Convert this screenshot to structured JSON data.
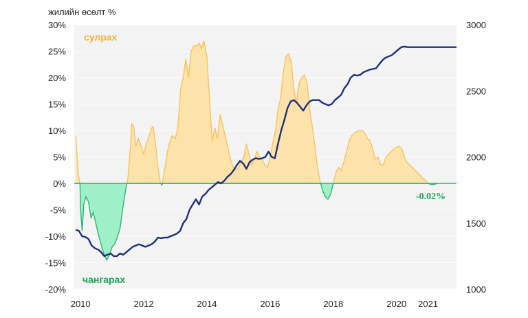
{
  "chart_data": {
    "type": "area",
    "ylabel": "жилийн өсөлт %",
    "y_left": {
      "min": -20,
      "max": 30,
      "step": 5,
      "format": "percent"
    },
    "y_right": {
      "min": 1000,
      "max": 3000,
      "step": 500
    },
    "x_ticks": [
      {
        "label": "2010",
        "x": 2010.0
      },
      {
        "label": "2012",
        "x": 2012.0
      },
      {
        "label": "2014",
        "x": 2014.0
      },
      {
        "label": "2016",
        "x": 2016.0
      },
      {
        "label": "2018",
        "x": 2018.0
      },
      {
        "label": "2020",
        "x": 2020.0
      },
      {
        "label": "2021",
        "x": 2021.0
      }
    ],
    "x_range": [
      2009.8,
      2021.9
    ],
    "annotations": {
      "up": "сулрах",
      "down": "чангарах",
      "end_value": "-0.02%"
    },
    "colors": {
      "up_fill": "#fde2aa",
      "up_line": "#f7c35c",
      "down_fill": "#9ff0c9",
      "down_line": "#2bb673",
      "level_line": "#1f2f7a",
      "up_text": "#f2b33d",
      "down_text": "#1aa35a",
      "grid": "#eeeeee",
      "plot_bg": "#f3f3f3"
    },
    "series": [
      {
        "role": "growth",
        "axis": "left",
        "points": [
          [
            2009.85,
            9.0
          ],
          [
            2009.92,
            2.0
          ],
          [
            2009.98,
            0.0
          ],
          [
            2010.0,
            -5.0
          ],
          [
            2010.05,
            -9.0
          ],
          [
            2010.1,
            -4.0
          ],
          [
            2010.17,
            -2.5
          ],
          [
            2010.25,
            -3.5
          ],
          [
            2010.33,
            -6.5
          ],
          [
            2010.4,
            -5.5
          ],
          [
            2010.5,
            -8.0
          ],
          [
            2010.58,
            -10.0
          ],
          [
            2010.67,
            -12.0
          ],
          [
            2010.75,
            -13.5
          ],
          [
            2010.83,
            -14.5
          ],
          [
            2010.92,
            -13.5
          ],
          [
            2011.0,
            -12.0
          ],
          [
            2011.08,
            -11.5
          ],
          [
            2011.17,
            -10.0
          ],
          [
            2011.25,
            -8.5
          ],
          [
            2011.33,
            -5.0
          ],
          [
            2011.42,
            -1.5
          ],
          [
            2011.5,
            1.0
          ],
          [
            2011.58,
            7.0
          ],
          [
            2011.62,
            11.3
          ],
          [
            2011.68,
            10.8
          ],
          [
            2011.75,
            7.0
          ],
          [
            2011.83,
            8.5
          ],
          [
            2011.92,
            7.0
          ],
          [
            2012.0,
            5.5
          ],
          [
            2012.08,
            7.5
          ],
          [
            2012.17,
            9.0
          ],
          [
            2012.25,
            10.5
          ],
          [
            2012.3,
            10.7
          ],
          [
            2012.38,
            7.0
          ],
          [
            2012.45,
            3.0
          ],
          [
            2012.53,
            0.0
          ],
          [
            2012.58,
            -0.3
          ],
          [
            2012.67,
            3.0
          ],
          [
            2012.75,
            6.0
          ],
          [
            2012.83,
            8.0
          ],
          [
            2012.9,
            9.0
          ],
          [
            2013.0,
            8.5
          ],
          [
            2013.08,
            10.5
          ],
          [
            2013.17,
            18.0
          ],
          [
            2013.25,
            20.0
          ],
          [
            2013.33,
            23.5
          ],
          [
            2013.42,
            20.0
          ],
          [
            2013.5,
            25.0
          ],
          [
            2013.58,
            26.0
          ],
          [
            2013.67,
            26.0
          ],
          [
            2013.75,
            26.5
          ],
          [
            2013.83,
            25.5
          ],
          [
            2013.9,
            27.0
          ],
          [
            2014.0,
            24.0
          ],
          [
            2014.08,
            16.0
          ],
          [
            2014.17,
            8.0
          ],
          [
            2014.25,
            10.5
          ],
          [
            2014.33,
            8.5
          ],
          [
            2014.42,
            13.0
          ],
          [
            2014.5,
            11.0
          ],
          [
            2014.58,
            9.0
          ],
          [
            2014.67,
            6.5
          ],
          [
            2014.75,
            4.5
          ],
          [
            2014.83,
            3.0
          ],
          [
            2014.92,
            2.5
          ],
          [
            2015.0,
            3.0
          ],
          [
            2015.08,
            4.0
          ],
          [
            2015.17,
            5.0
          ],
          [
            2015.25,
            7.5
          ],
          [
            2015.33,
            5.5
          ],
          [
            2015.42,
            3.5
          ],
          [
            2015.5,
            4.5
          ],
          [
            2015.58,
            6.0
          ],
          [
            2015.67,
            5.0
          ],
          [
            2015.75,
            4.5
          ],
          [
            2015.83,
            3.5
          ],
          [
            2015.92,
            3.0
          ],
          [
            2016.0,
            5.0
          ],
          [
            2016.08,
            7.5
          ],
          [
            2016.17,
            10.0
          ],
          [
            2016.25,
            14.0
          ],
          [
            2016.33,
            16.0
          ],
          [
            2016.42,
            21.0
          ],
          [
            2016.5,
            24.0
          ],
          [
            2016.58,
            24.5
          ],
          [
            2016.67,
            23.0
          ],
          [
            2016.75,
            18.0
          ],
          [
            2016.83,
            15.0
          ],
          [
            2016.92,
            19.0
          ],
          [
            2017.0,
            20.0
          ],
          [
            2017.08,
            20.5
          ],
          [
            2017.17,
            19.0
          ],
          [
            2017.25,
            14.0
          ],
          [
            2017.33,
            11.0
          ],
          [
            2017.42,
            7.0
          ],
          [
            2017.5,
            3.0
          ],
          [
            2017.58,
            0.5
          ],
          [
            2017.67,
            -1.5
          ],
          [
            2017.75,
            -2.5
          ],
          [
            2017.83,
            -3.0
          ],
          [
            2017.92,
            -2.0
          ],
          [
            2018.0,
            0.0
          ],
          [
            2018.08,
            2.0
          ],
          [
            2018.17,
            3.0
          ],
          [
            2018.25,
            2.5
          ],
          [
            2018.33,
            4.0
          ],
          [
            2018.42,
            6.0
          ],
          [
            2018.5,
            8.0
          ],
          [
            2018.58,
            9.0
          ],
          [
            2018.67,
            9.5
          ],
          [
            2018.75,
            9.8
          ],
          [
            2018.83,
            10.0
          ],
          [
            2018.92,
            10.0
          ],
          [
            2019.0,
            9.5
          ],
          [
            2019.08,
            8.5
          ],
          [
            2019.17,
            8.0
          ],
          [
            2019.25,
            6.5
          ],
          [
            2019.33,
            4.5
          ],
          [
            2019.42,
            5.0
          ],
          [
            2019.5,
            3.5
          ],
          [
            2019.58,
            3.5
          ],
          [
            2019.67,
            5.0
          ],
          [
            2019.75,
            5.5
          ],
          [
            2019.83,
            6.0
          ],
          [
            2019.92,
            6.5
          ],
          [
            2020.0,
            6.8
          ],
          [
            2020.08,
            7.0
          ],
          [
            2020.17,
            6.5
          ],
          [
            2020.25,
            5.0
          ],
          [
            2020.33,
            4.0
          ],
          [
            2020.42,
            3.5
          ],
          [
            2020.5,
            3.0
          ],
          [
            2020.58,
            2.5
          ],
          [
            2020.67,
            2.0
          ],
          [
            2020.75,
            1.5
          ],
          [
            2020.83,
            1.0
          ],
          [
            2020.92,
            0.5
          ],
          [
            2021.0,
            0.0
          ],
          [
            2021.08,
            -0.2
          ],
          [
            2021.17,
            -0.2
          ],
          [
            2021.25,
            -0.1
          ],
          [
            2021.3,
            -0.02
          ]
        ]
      },
      {
        "role": "level",
        "axis": "right",
        "points": [
          [
            2009.85,
            1450
          ],
          [
            2009.95,
            1440
          ],
          [
            2010.05,
            1400
          ],
          [
            2010.15,
            1395
          ],
          [
            2010.25,
            1380
          ],
          [
            2010.35,
            1330
          ],
          [
            2010.45,
            1310
          ],
          [
            2010.55,
            1300
          ],
          [
            2010.65,
            1280
          ],
          [
            2010.75,
            1250
          ],
          [
            2010.85,
            1260
          ],
          [
            2010.95,
            1270
          ],
          [
            2011.05,
            1250
          ],
          [
            2011.15,
            1250
          ],
          [
            2011.25,
            1270
          ],
          [
            2011.35,
            1260
          ],
          [
            2011.45,
            1280
          ],
          [
            2011.55,
            1300
          ],
          [
            2011.65,
            1320
          ],
          [
            2011.75,
            1330
          ],
          [
            2011.85,
            1340
          ],
          [
            2011.95,
            1330
          ],
          [
            2012.05,
            1320
          ],
          [
            2012.15,
            1330
          ],
          [
            2012.25,
            1340
          ],
          [
            2012.35,
            1360
          ],
          [
            2012.45,
            1390
          ],
          [
            2012.55,
            1385
          ],
          [
            2012.65,
            1390
          ],
          [
            2012.75,
            1390
          ],
          [
            2012.85,
            1400
          ],
          [
            2012.95,
            1410
          ],
          [
            2013.05,
            1420
          ],
          [
            2013.15,
            1440
          ],
          [
            2013.25,
            1500
          ],
          [
            2013.35,
            1530
          ],
          [
            2013.45,
            1600
          ],
          [
            2013.55,
            1640
          ],
          [
            2013.65,
            1680
          ],
          [
            2013.75,
            1640
          ],
          [
            2013.85,
            1700
          ],
          [
            2013.95,
            1720
          ],
          [
            2014.05,
            1750
          ],
          [
            2014.15,
            1770
          ],
          [
            2014.25,
            1790
          ],
          [
            2014.35,
            1810
          ],
          [
            2014.45,
            1800
          ],
          [
            2014.55,
            1820
          ],
          [
            2014.65,
            1850
          ],
          [
            2014.75,
            1870
          ],
          [
            2014.85,
            1900
          ],
          [
            2014.95,
            1940
          ],
          [
            2015.05,
            1970
          ],
          [
            2015.15,
            1950
          ],
          [
            2015.25,
            1910
          ],
          [
            2015.35,
            1960
          ],
          [
            2015.45,
            1980
          ],
          [
            2015.55,
            1990
          ],
          [
            2015.65,
            1985
          ],
          [
            2015.75,
            1990
          ],
          [
            2015.85,
            2000
          ],
          [
            2015.95,
            2040
          ],
          [
            2016.05,
            2000
          ],
          [
            2016.15,
            1990
          ],
          [
            2016.25,
            2100
          ],
          [
            2016.35,
            2200
          ],
          [
            2016.45,
            2280
          ],
          [
            2016.55,
            2370
          ],
          [
            2016.65,
            2420
          ],
          [
            2016.75,
            2430
          ],
          [
            2016.85,
            2410
          ],
          [
            2016.95,
            2380
          ],
          [
            2017.05,
            2350
          ],
          [
            2017.15,
            2390
          ],
          [
            2017.25,
            2420
          ],
          [
            2017.35,
            2430
          ],
          [
            2017.45,
            2430
          ],
          [
            2017.55,
            2430
          ],
          [
            2017.65,
            2410
          ],
          [
            2017.75,
            2400
          ],
          [
            2017.85,
            2390
          ],
          [
            2017.95,
            2400
          ],
          [
            2018.05,
            2430
          ],
          [
            2018.15,
            2450
          ],
          [
            2018.25,
            2470
          ],
          [
            2018.35,
            2520
          ],
          [
            2018.45,
            2550
          ],
          [
            2018.55,
            2600
          ],
          [
            2018.65,
            2620
          ],
          [
            2018.75,
            2615
          ],
          [
            2018.85,
            2620
          ],
          [
            2018.95,
            2640
          ],
          [
            2019.05,
            2650
          ],
          [
            2019.15,
            2660
          ],
          [
            2019.25,
            2665
          ],
          [
            2019.35,
            2670
          ],
          [
            2019.45,
            2700
          ],
          [
            2019.55,
            2730
          ],
          [
            2019.65,
            2750
          ],
          [
            2019.75,
            2760
          ],
          [
            2019.85,
            2770
          ],
          [
            2019.95,
            2790
          ],
          [
            2020.05,
            2810
          ],
          [
            2020.15,
            2830
          ],
          [
            2020.25,
            2835
          ],
          [
            2020.35,
            2830
          ],
          [
            2020.5,
            2830
          ],
          [
            2020.75,
            2830
          ],
          [
            2021.0,
            2830
          ],
          [
            2021.25,
            2830
          ],
          [
            2021.5,
            2830
          ],
          [
            2021.75,
            2830
          ],
          [
            2021.9,
            2830
          ]
        ]
      }
    ]
  }
}
